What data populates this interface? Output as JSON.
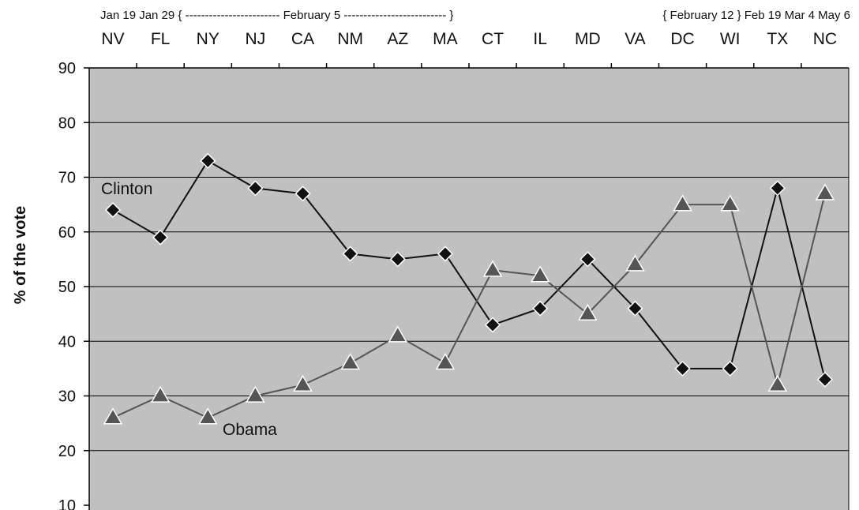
{
  "chart_data": {
    "type": "line",
    "ylabel": "% of the vote",
    "ylim": [
      10,
      90
    ],
    "yticks": [
      90,
      80,
      70,
      60,
      50,
      40,
      30,
      20,
      10
    ],
    "grid": true,
    "date_header": "Jan 19 Jan 29 { ------------------------ February 5 -------------------------- }",
    "date_header_right": "{ February 12 } Feb 19 Mar 4 May 6",
    "categories": [
      "NV",
      "FL",
      "NY",
      "NJ",
      "CA",
      "NM",
      "AZ",
      "MA",
      "CT",
      "IL",
      "MD",
      "VA",
      "DC",
      "WI",
      "TX",
      "NC"
    ],
    "series": [
      {
        "name": "Clinton",
        "marker": "diamond",
        "color": "#111111",
        "values": [
          64,
          59,
          73,
          68,
          67,
          56,
          55,
          56,
          43,
          46,
          55,
          46,
          35,
          35,
          68,
          33
        ]
      },
      {
        "name": "Obama",
        "marker": "triangle",
        "color": "#555555",
        "values": [
          26,
          30,
          26,
          30,
          32,
          36,
          41,
          36,
          53,
          52,
          45,
          54,
          65,
          65,
          32,
          67
        ]
      }
    ],
    "colors": {
      "plot_background": "#c0c0c0",
      "gridline": "#000000"
    }
  }
}
